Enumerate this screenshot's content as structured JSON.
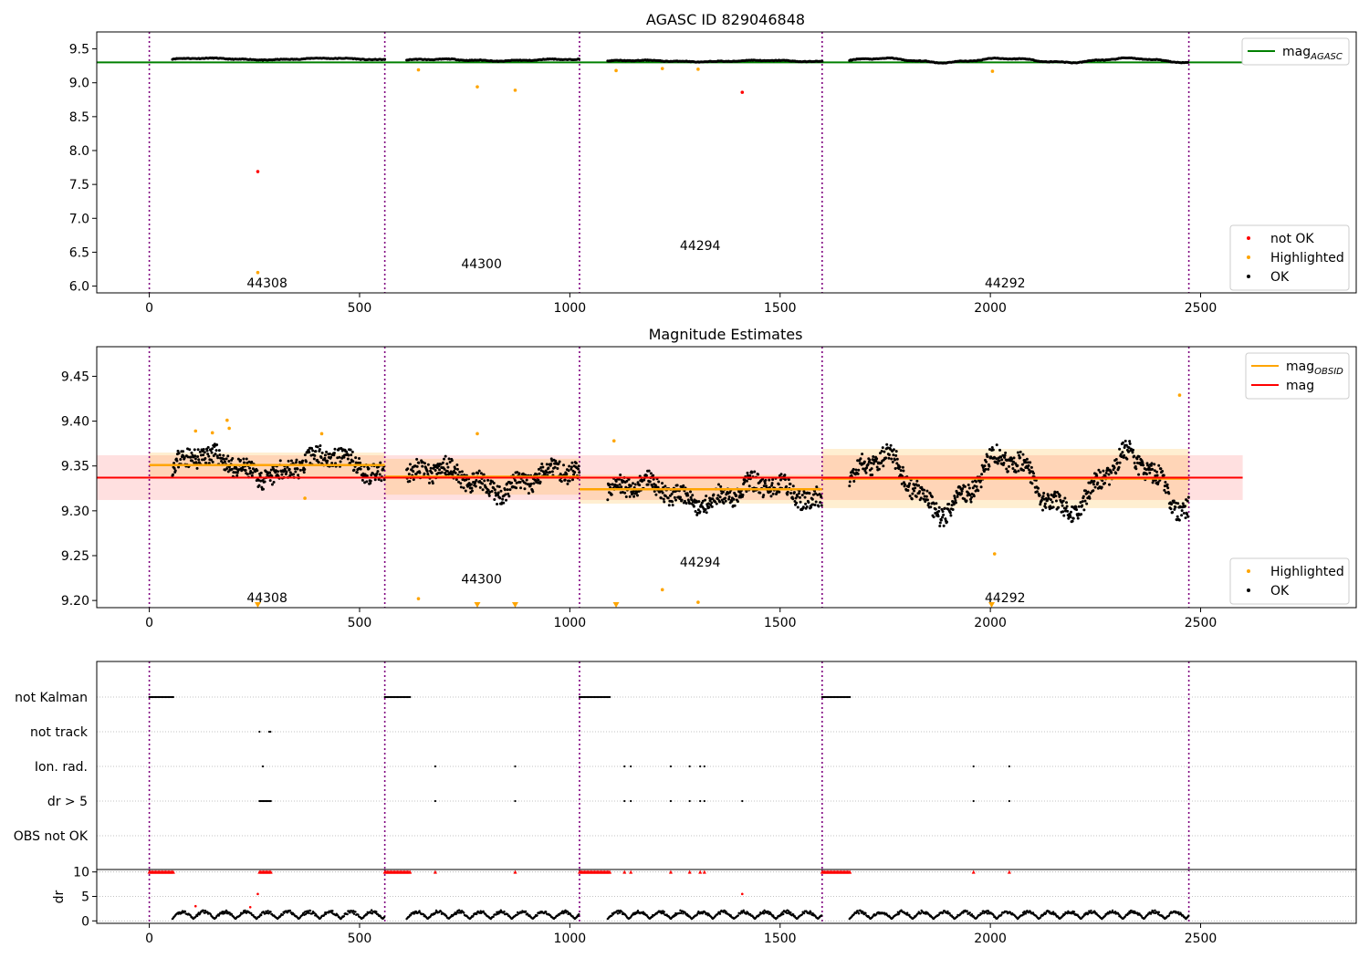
{
  "colors": {
    "ok": "#000000",
    "not_ok": "#ff0000",
    "highlighted": "#ffa500",
    "agasc_line": "#008000",
    "obsid_line": "#ffa500",
    "mag_line": "#ff0000",
    "obsid_divider": "#800080",
    "grid": "#b0b0b0"
  },
  "chart_data": [
    {
      "type": "scatter",
      "title": "AGASC ID 829046848",
      "xlabel": "",
      "ylabel": "",
      "xlim": [
        -125,
        2870
      ],
      "ylim": [
        5.9,
        9.75
      ],
      "x_ticks": [
        0,
        500,
        1000,
        1500,
        2000,
        2500
      ],
      "y_ticks": [
        6.0,
        6.5,
        7.0,
        7.5,
        8.0,
        8.5,
        9.0,
        9.5
      ],
      "y_tick_format": 1,
      "obsid_boundaries": [
        0,
        560,
        1023,
        1600,
        2472
      ],
      "obsid_labels": [
        {
          "text": "44308",
          "x": 280,
          "y": 6.05
        },
        {
          "text": "44300",
          "x": 790,
          "y": 6.33
        },
        {
          "text": "44294",
          "x": 1310,
          "y": 6.6
        },
        {
          "text": "44292",
          "x": 2035,
          "y": 6.05
        }
      ],
      "mag_agasc": 9.3,
      "mag_agasc_xrange": [
        -125,
        2600
      ],
      "legend_top": [
        {
          "label": "mag",
          "sub": "AGASC",
          "kind": "line",
          "color": "#008000"
        }
      ],
      "legend_bottom": [
        {
          "label": "not OK",
          "kind": "dot",
          "color": "#ff0000"
        },
        {
          "label": "Highlighted",
          "kind": "dot",
          "color": "#ffa500"
        },
        {
          "label": "OK",
          "kind": "dot",
          "color": "#000000"
        }
      ],
      "series": [
        {
          "name": "not OK",
          "points": [
            [
              258,
              7.69
            ],
            [
              1410,
              8.86
            ]
          ]
        },
        {
          "name": "Highlighted",
          "points": [
            [
              258,
              6.2
            ],
            [
              640,
              9.19
            ],
            [
              780,
              8.94
            ],
            [
              870,
              8.89
            ],
            [
              1110,
              9.18
            ],
            [
              1220,
              9.21
            ],
            [
              1305,
              9.2
            ],
            [
              2005,
              9.17
            ]
          ]
        },
        {
          "name": "OK",
          "segments": [
            {
              "x0": 55,
              "x1": 560,
              "base": 9.35,
              "osc": [
                0.012,
                0.004
              ]
            },
            {
              "x0": 612,
              "x1": 1023,
              "base": 9.335,
              "osc": [
                0.012,
                0.006
              ]
            },
            {
              "x0": 1090,
              "x1": 1600,
              "base": 9.32,
              "osc": [
                0.01,
                0.005
              ]
            },
            {
              "x0": 1665,
              "x1": 2472,
              "base": 9.33,
              "osc": [
                0.03,
                0.008
              ]
            }
          ]
        }
      ]
    },
    {
      "type": "scatter",
      "title": "Magnitude Estimates",
      "xlabel": "",
      "ylabel": "",
      "xlim": [
        -125,
        2870
      ],
      "ylim": [
        9.192,
        9.483
      ],
      "x_ticks": [
        0,
        500,
        1000,
        1500,
        2000,
        2500
      ],
      "y_ticks": [
        9.2,
        9.25,
        9.3,
        9.35,
        9.4,
        9.45
      ],
      "y_tick_format": 2,
      "obsid_boundaries": [
        0,
        560,
        1023,
        1600,
        2472
      ],
      "obsid_labels": [
        {
          "text": "44308",
          "x": 280,
          "y": 9.203
        },
        {
          "text": "44300",
          "x": 790,
          "y": 9.224
        },
        {
          "text": "44294",
          "x": 1310,
          "y": 9.243
        },
        {
          "text": "44292",
          "x": 2035,
          "y": 9.203
        }
      ],
      "mag": 9.337,
      "mag_band": [
        9.312,
        9.362
      ],
      "mag_xrange": [
        -125,
        2600
      ],
      "obsid_mags": [
        {
          "x0": 0,
          "x1": 560,
          "mag": 9.351,
          "band": [
            9.337,
            9.365
          ]
        },
        {
          "x0": 560,
          "x1": 1023,
          "mag": 9.338,
          "band": [
            9.318,
            9.358
          ]
        },
        {
          "x0": 1023,
          "x1": 1600,
          "mag": 9.324,
          "band": [
            9.308,
            9.34
          ]
        },
        {
          "x0": 1600,
          "x1": 2472,
          "mag": 9.336,
          "band": [
            9.303,
            9.369
          ]
        }
      ],
      "legend_top": [
        {
          "label": "mag",
          "sub": "OBSID",
          "kind": "line",
          "color": "#ffa500"
        },
        {
          "label": "mag",
          "sub": "",
          "kind": "line",
          "color": "#ff0000"
        }
      ],
      "legend_bottom": [
        {
          "label": "Highlighted",
          "kind": "dot",
          "color": "#ffa500"
        },
        {
          "label": "OK",
          "kind": "dot",
          "color": "#000000"
        }
      ],
      "series": [
        {
          "name": "Highlighted",
          "points": [
            [
              110,
              9.389
            ],
            [
              150,
              9.387
            ],
            [
              185,
              9.401
            ],
            [
              190,
              9.392
            ],
            [
              410,
              9.386
            ],
            [
              370,
              9.314
            ],
            [
              640,
              9.202
            ],
            [
              1220,
              9.212
            ],
            [
              1305,
              9.198
            ],
            [
              2010,
              9.252
            ],
            [
              1105,
              9.378
            ],
            [
              780,
              9.386
            ],
            [
              2450,
              9.429
            ]
          ]
        },
        {
          "name": "Highlighted (off-scale, lower)",
          "points": [
            [
              258,
              9.195
            ],
            [
              780,
              9.195
            ],
            [
              870,
              9.195
            ],
            [
              1110,
              9.195
            ],
            [
              2003,
              9.195
            ]
          ]
        },
        {
          "name": "OK",
          "segments": [
            {
              "x0": 55,
              "x1": 560,
              "base": 9.35,
              "osc": [
                0.012,
                0.004
              ]
            },
            {
              "x0": 612,
              "x1": 1023,
              "base": 9.335,
              "osc": [
                0.012,
                0.006
              ]
            },
            {
              "x0": 1090,
              "x1": 1600,
              "base": 9.32,
              "osc": [
                0.01,
                0.005
              ]
            },
            {
              "x0": 1665,
              "x1": 2472,
              "base": 9.33,
              "osc": [
                0.03,
                0.008
              ]
            }
          ]
        }
      ]
    },
    {
      "type": "scatter",
      "title": "",
      "xlabel": "",
      "ylabel": "",
      "xlim": [
        -125,
        2870
      ],
      "x_ticks": [
        0,
        500,
        1000,
        1500,
        2000,
        2500
      ],
      "obsid_boundaries": [
        0,
        560,
        1023,
        1600,
        2472
      ],
      "flag_rows": [
        "not Kalman",
        "not track",
        "Ion. rad.",
        "dr > 5",
        "OBS not OK"
      ],
      "flags": {
        "not Kalman": [
          [
            0,
            58
          ],
          [
            560,
            620
          ],
          [
            1023,
            1095
          ],
          [
            1600,
            1668
          ]
        ],
        "not track": [
          [
            262,
            262
          ],
          [
            285,
            290
          ]
        ],
        "Ion. rad.": [
          [
            270,
            270
          ],
          [
            680,
            680
          ],
          [
            870,
            870
          ],
          [
            1130,
            1130
          ],
          [
            1145,
            1145
          ],
          [
            1240,
            1240
          ],
          [
            1285,
            1285
          ],
          [
            1310,
            1310
          ],
          [
            1320,
            1320
          ],
          [
            1960,
            1960
          ],
          [
            2045,
            2045
          ]
        ],
        "dr > 5": [
          [
            262,
            290
          ],
          [
            680,
            680
          ],
          [
            870,
            870
          ],
          [
            1130,
            1130
          ],
          [
            1145,
            1145
          ],
          [
            1240,
            1240
          ],
          [
            1285,
            1285
          ],
          [
            1310,
            1310
          ],
          [
            1320,
            1320
          ],
          [
            1410,
            1410
          ],
          [
            1960,
            1960
          ],
          [
            2045,
            2045
          ]
        ],
        "OBS not OK": []
      }
    },
    {
      "type": "scatter",
      "title": "",
      "xlabel": "",
      "ylabel": "dr",
      "xlim": [
        -125,
        2870
      ],
      "ylim": [
        -0.5,
        10.5
      ],
      "y_ticks": [
        0,
        5,
        10
      ],
      "x_ticks": [
        0,
        500,
        1000,
        1500,
        2000,
        2500
      ],
      "obsid_boundaries": [
        0,
        560,
        1023,
        1600,
        2472
      ],
      "clip_value": 10,
      "clipped_x": [
        [
          0,
          58
        ],
        [
          262,
          290
        ],
        [
          560,
          620
        ],
        [
          680,
          680
        ],
        [
          870,
          870
        ],
        [
          1023,
          1095
        ],
        [
          1130,
          1130
        ],
        [
          1145,
          1145
        ],
        [
          1240,
          1240
        ],
        [
          1285,
          1285
        ],
        [
          1310,
          1310
        ],
        [
          1320,
          1320
        ],
        [
          1600,
          1668
        ],
        [
          1960,
          1960
        ],
        [
          2045,
          2045
        ]
      ],
      "red_points": [
        [
          110,
          3.0
        ],
        [
          240,
          2.8
        ],
        [
          258,
          5.5
        ],
        [
          1410,
          5.5
        ]
      ],
      "ok_segments": [
        [
          55,
          560
        ],
        [
          612,
          1023
        ],
        [
          1090,
          1600
        ],
        [
          1665,
          2472
        ]
      ]
    }
  ]
}
